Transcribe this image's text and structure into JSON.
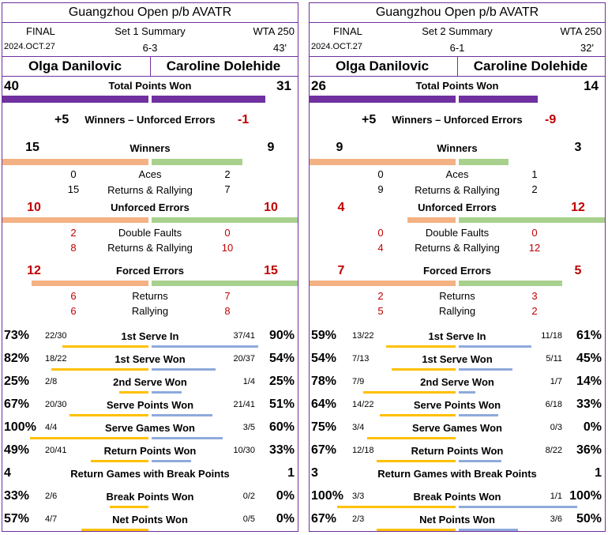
{
  "colors": {
    "total": "#7030a0",
    "p1bar": "#f4b183",
    "p2bar": "#a9d18e",
    "serve_p1": "#ffc000",
    "serve_p2": "#8faadc",
    "text_red": "#c00000"
  },
  "panels": [
    {
      "title": "Guangzhou Open p/b AVATR",
      "round": "FINAL",
      "summary": "Set 1 Summary",
      "tier": "WTA 250",
      "date": "2024.OCT.27",
      "score": "6-3",
      "duration": "43'",
      "p1": "Olga Danilovic",
      "p2": "Caroline Dolehide",
      "total_label": "Total Points Won",
      "total_p1": "40",
      "total_p2": "31",
      "total_p1_frac": 1.0,
      "total_p2_frac": 0.78,
      "wue_label": "Winners – Unforced Errors",
      "wue_p1": "+5",
      "wue_p2": "-1",
      "winners_label": "Winners",
      "winners_p1": "15",
      "winners_p2": "9",
      "winners_p1_frac": 1.0,
      "winners_p2_frac": 0.6,
      "aces_label": "Aces",
      "aces_p1": "0",
      "aces_p2": "2",
      "rr_label": "Returns & Rallying",
      "rr_p1": "15",
      "rr_p2": "7",
      "ue_label": "Unforced Errors",
      "ue_p1": "10",
      "ue_p2": "10",
      "ue_p1_frac": 1.0,
      "ue_p2_frac": 1.0,
      "df_label": "Double Faults",
      "df_p1": "2",
      "df_p2": "0",
      "uerr_label": "Returns & Rallying",
      "uerr_p1": "8",
      "uerr_p2": "10",
      "fe_label": "Forced Errors",
      "fe_p1": "12",
      "fe_p2": "15",
      "fe_p1_frac": 0.8,
      "fe_p2_frac": 1.0,
      "fer_label": "Returns",
      "fer_p1": "6",
      "fer_p2": "7",
      "fera_label": "Rallying",
      "fera_p1": "6",
      "fera_p2": "8",
      "stats": [
        {
          "label": "1st Serve In",
          "p1_pct": "73%",
          "p1_frac": "22/30",
          "p2_pct": "90%",
          "p2_frac": "37/41",
          "p1_v": 0.73,
          "p2_v": 0.9
        },
        {
          "label": "1st Serve Won",
          "p1_pct": "82%",
          "p1_frac": "18/22",
          "p2_pct": "54%",
          "p2_frac": "20/37",
          "p1_v": 0.82,
          "p2_v": 0.54
        },
        {
          "label": "2nd Serve Won",
          "p1_pct": "25%",
          "p1_frac": "2/8",
          "p2_pct": "25%",
          "p2_frac": "1/4",
          "p1_v": 0.25,
          "p2_v": 0.25
        },
        {
          "label": "Serve Points Won",
          "p1_pct": "67%",
          "p1_frac": "20/30",
          "p2_pct": "51%",
          "p2_frac": "21/41",
          "p1_v": 0.67,
          "p2_v": 0.51
        },
        {
          "label": "Serve Games Won",
          "p1_pct": "100%",
          "p1_frac": "4/4",
          "p2_pct": "60%",
          "p2_frac": "3/5",
          "p1_v": 1.0,
          "p2_v": 0.6
        },
        {
          "label": "Return Points Won",
          "p1_pct": "49%",
          "p1_frac": "20/41",
          "p2_pct": "33%",
          "p2_frac": "10/30",
          "p1_v": 0.49,
          "p2_v": 0.33
        },
        {
          "label": "Return Games with Break Points",
          "p1_pct": "4",
          "p1_frac": "",
          "p2_pct": "1",
          "p2_frac": "",
          "p1_v": 0,
          "p2_v": 0
        },
        {
          "label": "Break Points Won",
          "p1_pct": "33%",
          "p1_frac": "2/6",
          "p2_pct": "0%",
          "p2_frac": "0/2",
          "p1_v": 0.33,
          "p2_v": 0.0
        },
        {
          "label": "Net Points Won",
          "p1_pct": "57%",
          "p1_frac": "4/7",
          "p2_pct": "0%",
          "p2_frac": "0/5",
          "p1_v": 0.57,
          "p2_v": 0.0
        }
      ]
    },
    {
      "title": "Guangzhou Open p/b AVATR",
      "round": "FINAL",
      "summary": "Set 2 Summary",
      "tier": "WTA 250",
      "date": "2024.OCT.27",
      "score": "6-1",
      "duration": "32'",
      "p1": "Olga Danilovic",
      "p2": "Caroline Dolehide",
      "total_label": "Total Points Won",
      "total_p1": "26",
      "total_p2": "14",
      "total_p1_frac": 1.0,
      "total_p2_frac": 0.54,
      "wue_label": "Winners – Unforced Errors",
      "wue_p1": "+5",
      "wue_p2": "-9",
      "winners_label": "Winners",
      "winners_p1": "9",
      "winners_p2": "3",
      "winners_p1_frac": 1.0,
      "winners_p2_frac": 0.33,
      "aces_label": "Aces",
      "aces_p1": "0",
      "aces_p2": "1",
      "rr_label": "Returns & Rallying",
      "rr_p1": "9",
      "rr_p2": "2",
      "ue_label": "Unforced Errors",
      "ue_p1": "4",
      "ue_p2": "12",
      "ue_p1_frac": 0.33,
      "ue_p2_frac": 1.0,
      "df_label": "Double Faults",
      "df_p1": "0",
      "df_p2": "0",
      "uerr_label": "Returns & Rallying",
      "uerr_p1": "4",
      "uerr_p2": "12",
      "fe_label": "Forced Errors",
      "fe_p1": "7",
      "fe_p2": "5",
      "fe_p1_frac": 1.0,
      "fe_p2_frac": 0.71,
      "fer_label": "Returns",
      "fer_p1": "2",
      "fer_p2": "3",
      "fera_label": "Rallying",
      "fera_p1": "5",
      "fera_p2": "2",
      "stats": [
        {
          "label": "1st Serve In",
          "p1_pct": "59%",
          "p1_frac": "13/22",
          "p2_pct": "61%",
          "p2_frac": "11/18",
          "p1_v": 0.59,
          "p2_v": 0.61
        },
        {
          "label": "1st Serve Won",
          "p1_pct": "54%",
          "p1_frac": "7/13",
          "p2_pct": "45%",
          "p2_frac": "5/11",
          "p1_v": 0.54,
          "p2_v": 0.45
        },
        {
          "label": "2nd Serve Won",
          "p1_pct": "78%",
          "p1_frac": "7/9",
          "p2_pct": "14%",
          "p2_frac": "1/7",
          "p1_v": 0.78,
          "p2_v": 0.14
        },
        {
          "label": "Serve Points Won",
          "p1_pct": "64%",
          "p1_frac": "14/22",
          "p2_pct": "33%",
          "p2_frac": "6/18",
          "p1_v": 0.64,
          "p2_v": 0.33
        },
        {
          "label": "Serve Games Won",
          "p1_pct": "75%",
          "p1_frac": "3/4",
          "p2_pct": "0%",
          "p2_frac": "0/3",
          "p1_v": 0.75,
          "p2_v": 0.0
        },
        {
          "label": "Return Points Won",
          "p1_pct": "67%",
          "p1_frac": "12/18",
          "p2_pct": "36%",
          "p2_frac": "8/22",
          "p1_v": 0.67,
          "p2_v": 0.36
        },
        {
          "label": "Return Games with Break Points",
          "p1_pct": "3",
          "p1_frac": "",
          "p2_pct": "1",
          "p2_frac": "",
          "p1_v": 0,
          "p2_v": 0
        },
        {
          "label": "Break Points Won",
          "p1_pct": "100%",
          "p1_frac": "3/3",
          "p2_pct": "100%",
          "p2_frac": "1/1",
          "p1_v": 1.0,
          "p2_v": 1.0
        },
        {
          "label": "Net Points Won",
          "p1_pct": "67%",
          "p1_frac": "2/3",
          "p2_pct": "50%",
          "p2_frac": "3/6",
          "p1_v": 0.67,
          "p2_v": 0.5
        }
      ]
    }
  ]
}
